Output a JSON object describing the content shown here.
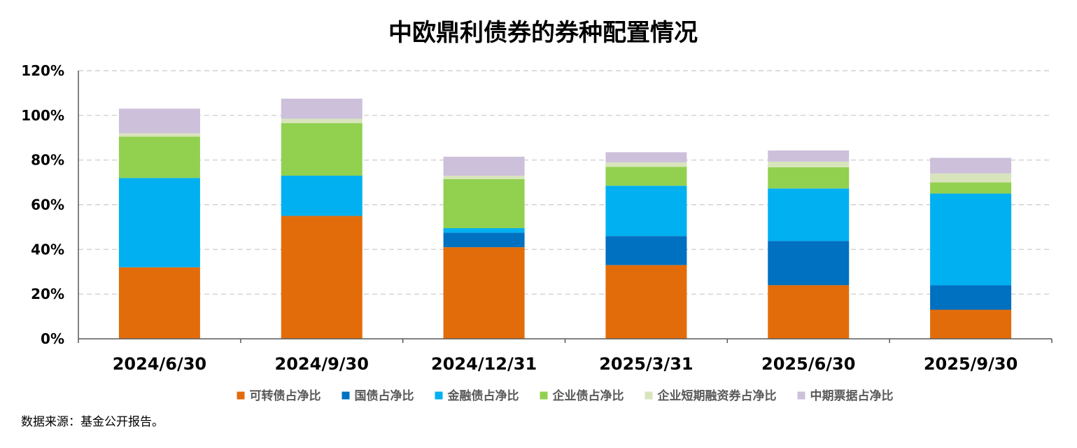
{
  "chart_data": {
    "type": "bar",
    "stacked": true,
    "title": "中欧鼎利债券的券种配置情况",
    "xlabel": "",
    "ylabel": "",
    "ylim": [
      0,
      120
    ],
    "yticks": [
      "0%",
      "20%",
      "40%",
      "60%",
      "80%",
      "100%",
      "120%"
    ],
    "ytick_values": [
      0,
      20,
      40,
      60,
      80,
      100,
      120
    ],
    "grid": true,
    "legend_position": "bottom",
    "categories": [
      "2024/6/30",
      "2024/9/30",
      "2024/12/31",
      "2025/3/31",
      "2025/6/30",
      "2025/9/30"
    ],
    "series": [
      {
        "name": "可转债占净比",
        "color": "#E36C0A",
        "values": [
          32.0,
          55.0,
          41.0,
          33.0,
          24.0,
          13.0
        ]
      },
      {
        "name": "国债占净比",
        "color": "#0070C0",
        "values": [
          0.0,
          0.0,
          6.5,
          13.0,
          19.8,
          11.0
        ]
      },
      {
        "name": "金融债占净比",
        "color": "#00B0F0",
        "values": [
          40.0,
          18.0,
          2.0,
          22.5,
          23.5,
          41.0
        ]
      },
      {
        "name": "企业债占净比",
        "color": "#92D050",
        "values": [
          18.5,
          23.5,
          22.0,
          8.5,
          9.5,
          5.0
        ]
      },
      {
        "name": "企业短期融资券占净比",
        "color": "#D8E4BC",
        "values": [
          1.5,
          2.0,
          1.5,
          2.0,
          2.5,
          4.0
        ]
      },
      {
        "name": "中期票据占净比",
        "color": "#CCC0DA",
        "values": [
          11.0,
          9.0,
          8.5,
          4.5,
          5.0,
          7.0
        ]
      }
    ]
  },
  "source_note": "数据来源：基金公开报告。"
}
